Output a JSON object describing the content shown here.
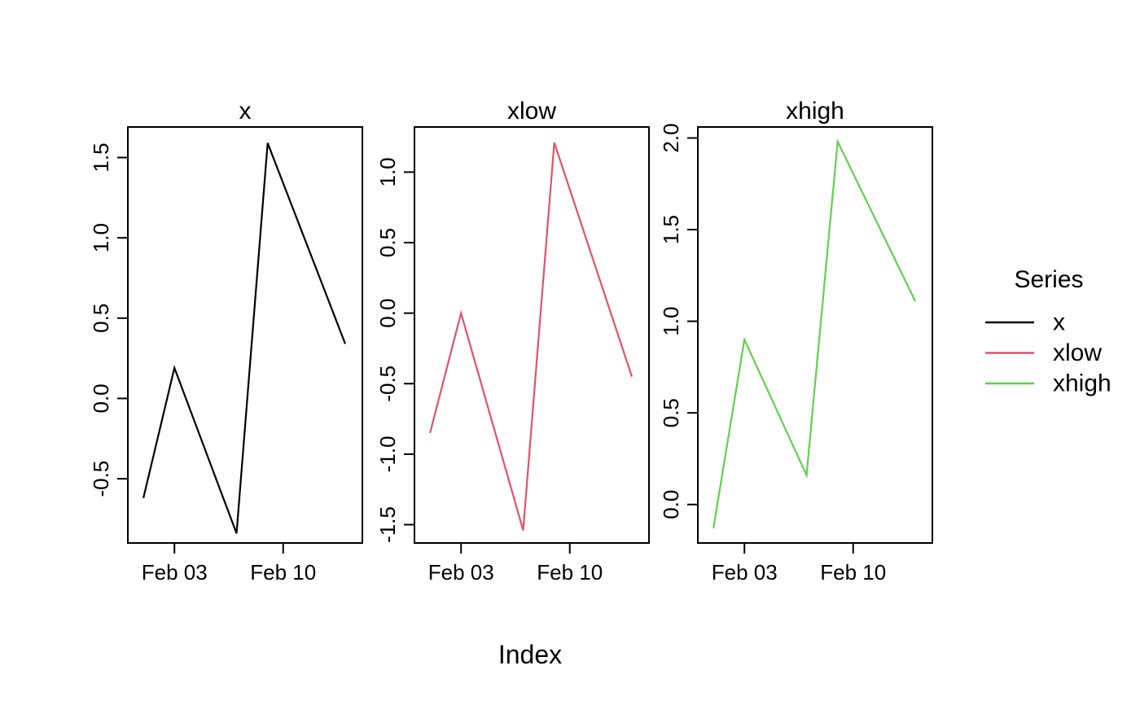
{
  "figure": {
    "background": "#ffffff",
    "xlabel": "Index",
    "legend": {
      "title": "Series",
      "entries": [
        {
          "label": "x",
          "color": "#000000"
        },
        {
          "label": "xlow",
          "color": "#DF536B"
        },
        {
          "label": "xhigh",
          "color": "#61D04F"
        }
      ]
    }
  },
  "chart_data": [
    {
      "type": "line",
      "title": "x",
      "series": [
        {
          "name": "x",
          "color": "#000000",
          "x_days_feb": [
            1,
            3,
            7,
            9,
            14
          ],
          "values": [
            -0.62,
            0.19,
            -0.84,
            1.59,
            0.34
          ]
        }
      ],
      "xlim_days": [
        0,
        15.1
      ],
      "x_ticks": [
        {
          "day": 3,
          "label": "Feb 03"
        },
        {
          "day": 10,
          "label": "Feb 10"
        }
      ],
      "y_ticks": [
        -0.5,
        0.0,
        0.5,
        1.0,
        1.5
      ],
      "y_tick_labels": [
        "-0.5",
        "0.0",
        "0.5",
        "1.0",
        "1.5"
      ],
      "ylim": [
        -0.9,
        1.69
      ],
      "grid": false,
      "legend_position": "right"
    },
    {
      "type": "line",
      "title": "xlow",
      "series": [
        {
          "name": "xlow",
          "color": "#DF536B",
          "x_days_feb": [
            1,
            3,
            7,
            9,
            14
          ],
          "values": [
            -0.85,
            0.0,
            -1.54,
            1.21,
            -0.45
          ]
        }
      ],
      "xlim_days": [
        0,
        15.1
      ],
      "x_ticks": [
        {
          "day": 3,
          "label": "Feb 03"
        },
        {
          "day": 10,
          "label": "Feb 10"
        }
      ],
      "y_ticks": [
        -1.5,
        -1.0,
        -0.5,
        0.0,
        0.5,
        1.0
      ],
      "y_tick_labels": [
        "-1.5",
        "-1.0",
        "-0.5",
        "0.0",
        "0.5",
        "1.0"
      ],
      "ylim": [
        -1.63,
        1.32
      ],
      "grid": false,
      "legend_position": "right"
    },
    {
      "type": "line",
      "title": "xhigh",
      "series": [
        {
          "name": "xhigh",
          "color": "#61D04F",
          "x_days_feb": [
            1,
            3,
            7,
            9,
            14
          ],
          "values": [
            -0.13,
            0.9,
            0.16,
            1.98,
            1.11
          ]
        }
      ],
      "xlim_days": [
        0,
        15.1
      ],
      "x_ticks": [
        {
          "day": 3,
          "label": "Feb 03"
        },
        {
          "day": 10,
          "label": "Feb 10"
        }
      ],
      "y_ticks": [
        0.0,
        0.5,
        1.0,
        1.5,
        2.0
      ],
      "y_tick_labels": [
        "0.0",
        "0.5",
        "1.0",
        "1.5",
        "2.0"
      ],
      "ylim": [
        -0.21,
        2.06
      ],
      "grid": false,
      "legend_position": "right"
    }
  ]
}
